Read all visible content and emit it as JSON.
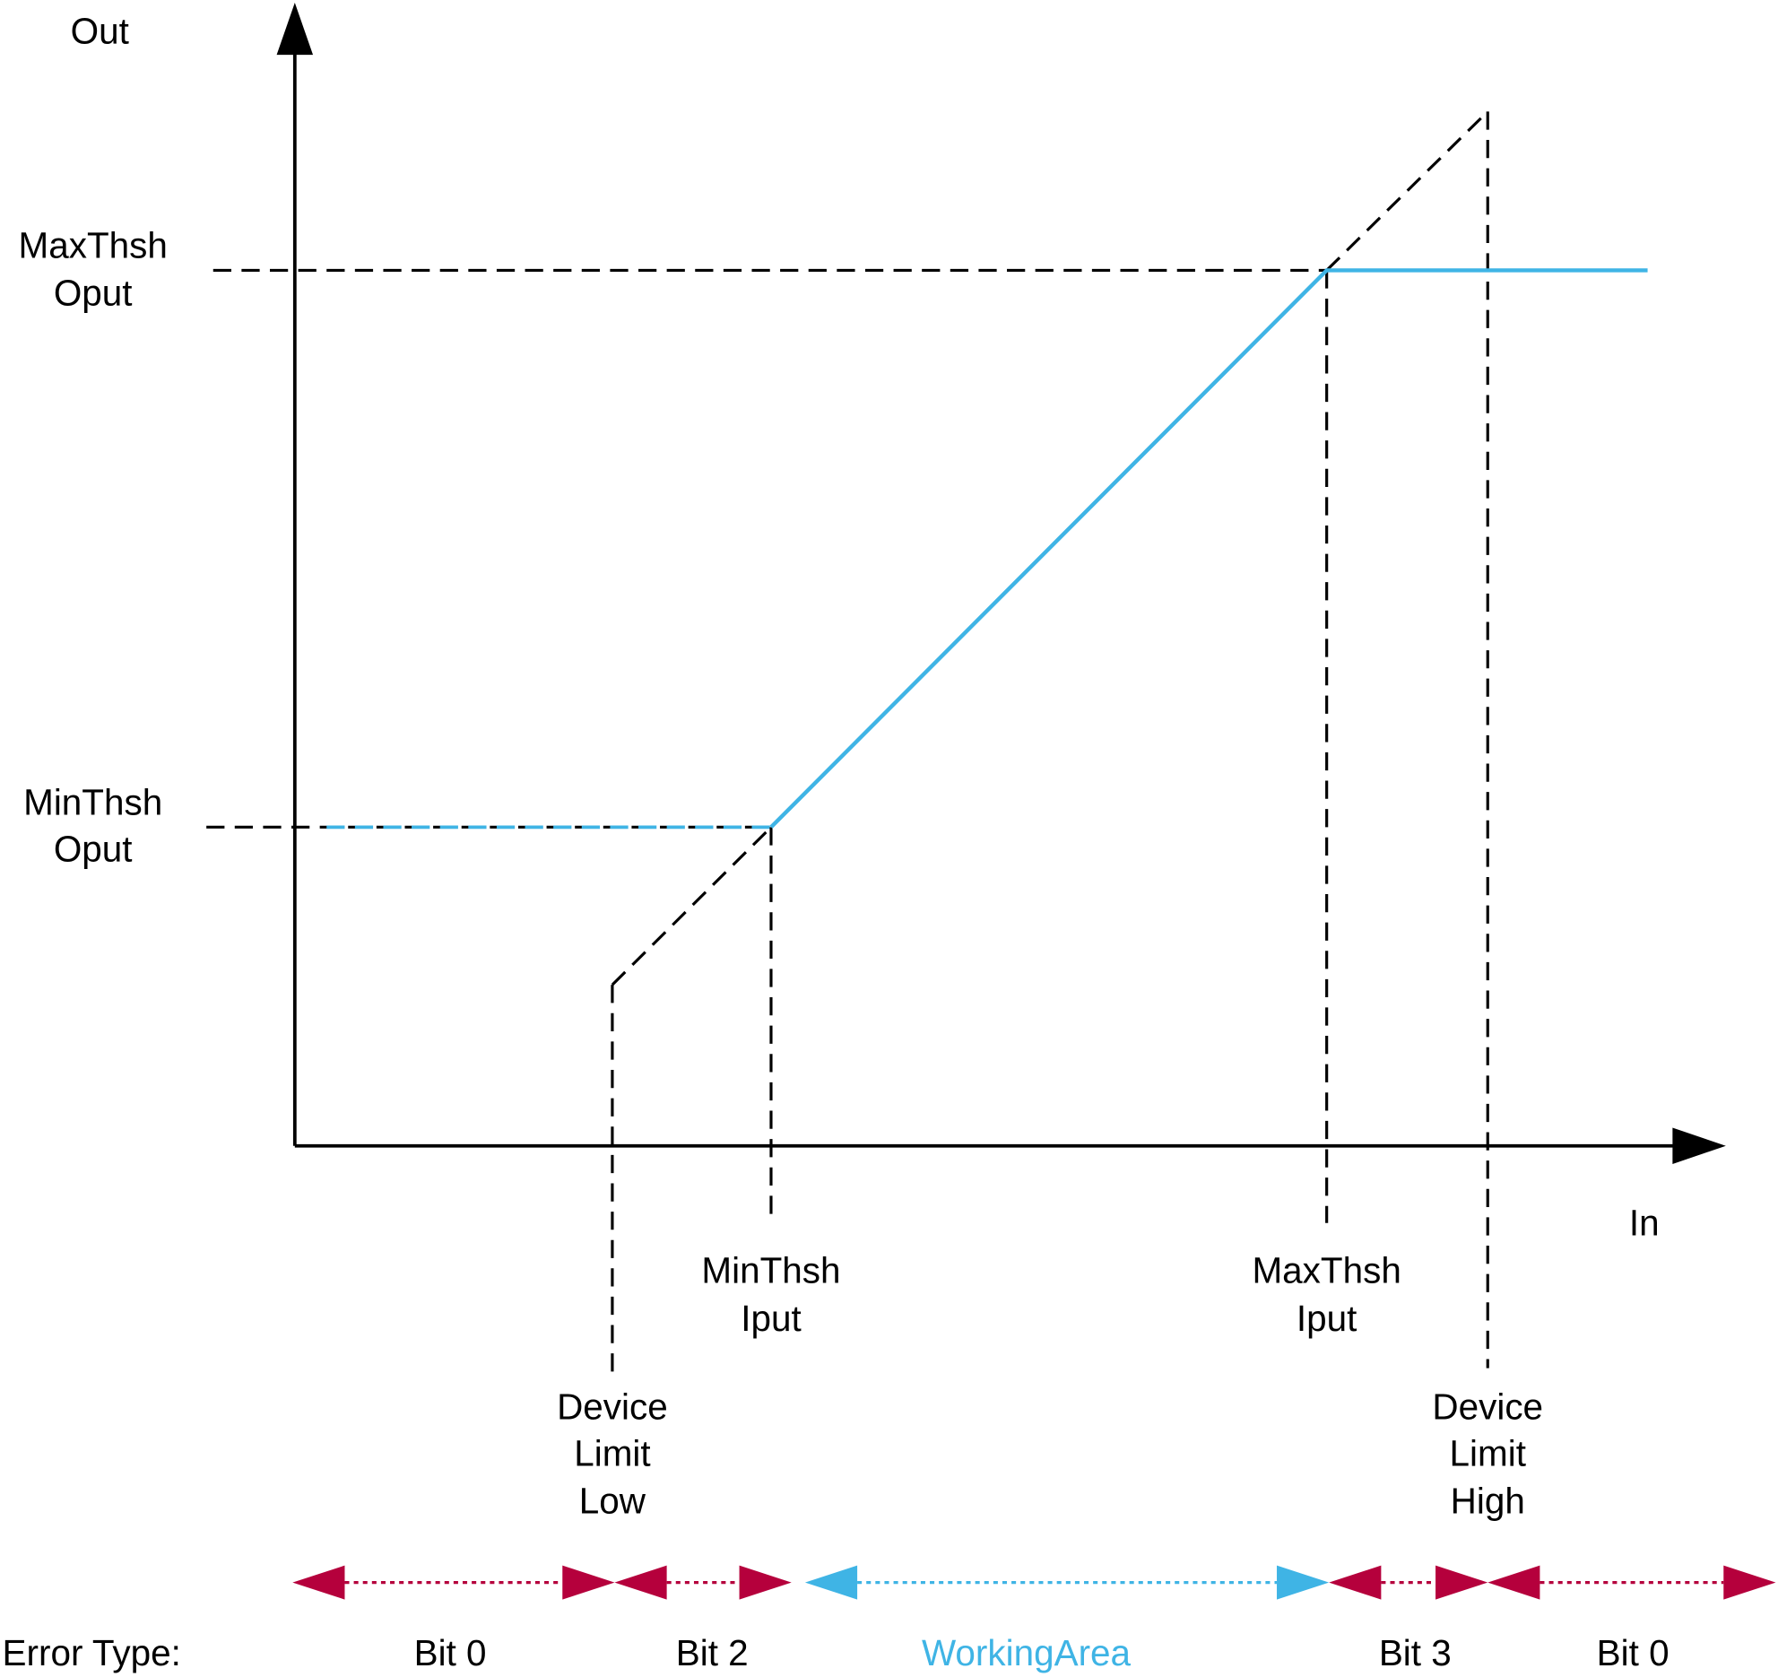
{
  "axes": {
    "y_label": "Out",
    "x_label": "In"
  },
  "y_markers": [
    {
      "lines": [
        "MaxThsh",
        "Oput"
      ]
    },
    {
      "lines": [
        "MinThsh",
        "Oput"
      ]
    }
  ],
  "x_markers": [
    {
      "lines": [
        "MinThsh",
        "Iput"
      ]
    },
    {
      "lines": [
        "MaxThsh",
        "Iput"
      ]
    },
    {
      "lines": [
        "Device",
        "Limit",
        "Low"
      ]
    },
    {
      "lines": [
        "Device",
        "Limit",
        "High"
      ]
    }
  ],
  "error_row": {
    "title": "Error Type:",
    "zones": [
      "Bit 0",
      "Bit 2",
      "WorkingArea",
      "Bit 3",
      "Bit 0"
    ]
  }
}
